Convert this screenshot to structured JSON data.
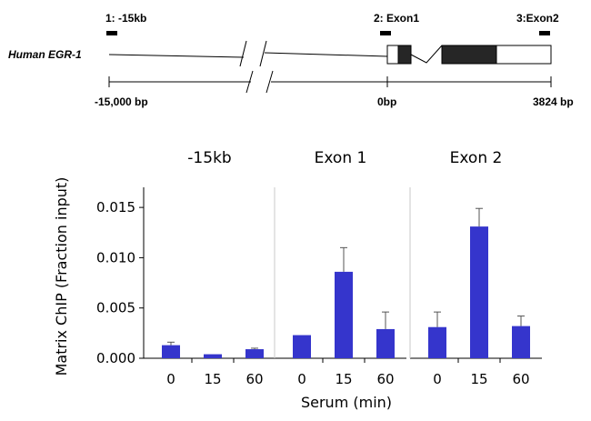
{
  "gene_map": {
    "gene_label": "Human EGR-1",
    "probes": [
      {
        "label": "1: -15kb",
        "pos_bp": -15000
      },
      {
        "label": "2: Exon1",
        "pos_bp": 0
      },
      {
        "label": "3:Exon2",
        "pos_bp": 3824
      }
    ],
    "scale_labels": [
      "-15,000  bp",
      "0bp",
      "3824 bp"
    ]
  },
  "chart_data": {
    "type": "bar",
    "ylabel": "Matrix ChIP (Fraction input)",
    "xlabel": "Serum (min)",
    "ylim": [
      0,
      0.017
    ],
    "yticks": [
      "0.000",
      "0.005",
      "0.010",
      "0.015"
    ],
    "ytick_values": [
      0,
      0.005,
      0.01,
      0.015
    ],
    "categories": [
      "0",
      "15",
      "60"
    ],
    "bar_color": "#3535cc",
    "grid": false,
    "panels": [
      {
        "title": "-15kb",
        "values": [
          0.0013,
          0.0004,
          0.0009
        ],
        "errors": [
          0.0003,
          0.0,
          0.0001
        ]
      },
      {
        "title": "Exon 1",
        "values": [
          0.0023,
          0.0086,
          0.0029
        ],
        "errors": [
          0.0,
          0.0024,
          0.0017
        ]
      },
      {
        "title": "Exon 2",
        "values": [
          0.0031,
          0.0131,
          0.0032
        ],
        "errors": [
          0.0015,
          0.0018,
          0.001
        ]
      }
    ]
  }
}
